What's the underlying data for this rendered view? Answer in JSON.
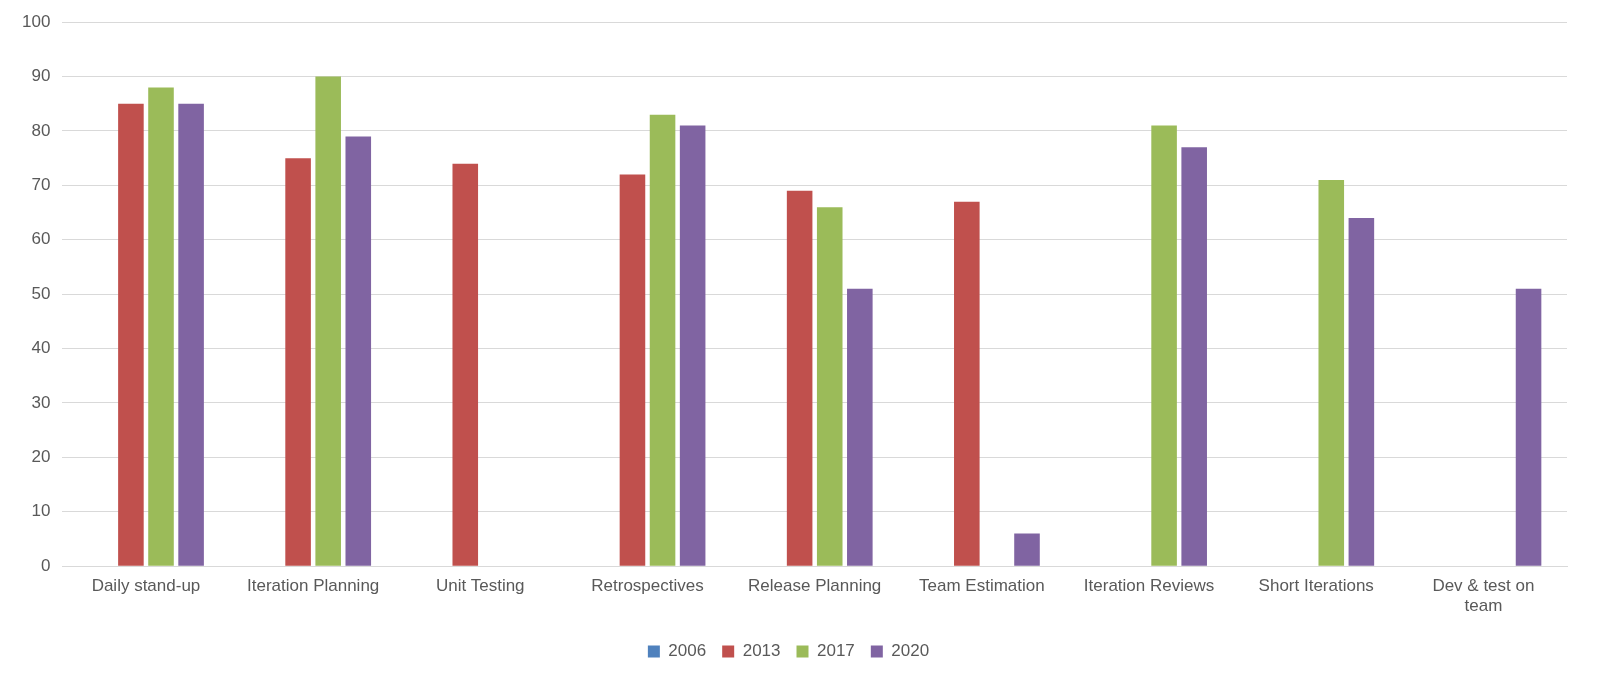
{
  "chart_data": {
    "type": "bar",
    "categories": [
      "Daily stand-up",
      "Iteration Planning",
      "Unit Testing",
      "Retrospectives",
      "Release Planning",
      "Team Estimation",
      "Iteration Reviews",
      "Short Iterations",
      "Dev & test on team"
    ],
    "series": [
      {
        "name": "2006",
        "color": "#4f81bd",
        "values": [
          null,
          null,
          null,
          null,
          null,
          null,
          null,
          null,
          null
        ]
      },
      {
        "name": "2013",
        "color": "#c0504d",
        "values": [
          85,
          75,
          74,
          72,
          69,
          67,
          null,
          null,
          null
        ]
      },
      {
        "name": "2017",
        "color": "#9bbb59",
        "values": [
          88,
          90,
          null,
          83,
          66,
          null,
          81,
          71,
          null
        ]
      },
      {
        "name": "2020",
        "color": "#8064a2",
        "values": [
          85,
          79,
          null,
          81,
          51,
          6,
          77,
          64,
          51
        ]
      }
    ],
    "ylim": [
      0,
      100
    ],
    "yticks": [
      0,
      10,
      20,
      30,
      40,
      50,
      60,
      70,
      80,
      90,
      100
    ],
    "grid": "y",
    "legend": "bottom"
  }
}
